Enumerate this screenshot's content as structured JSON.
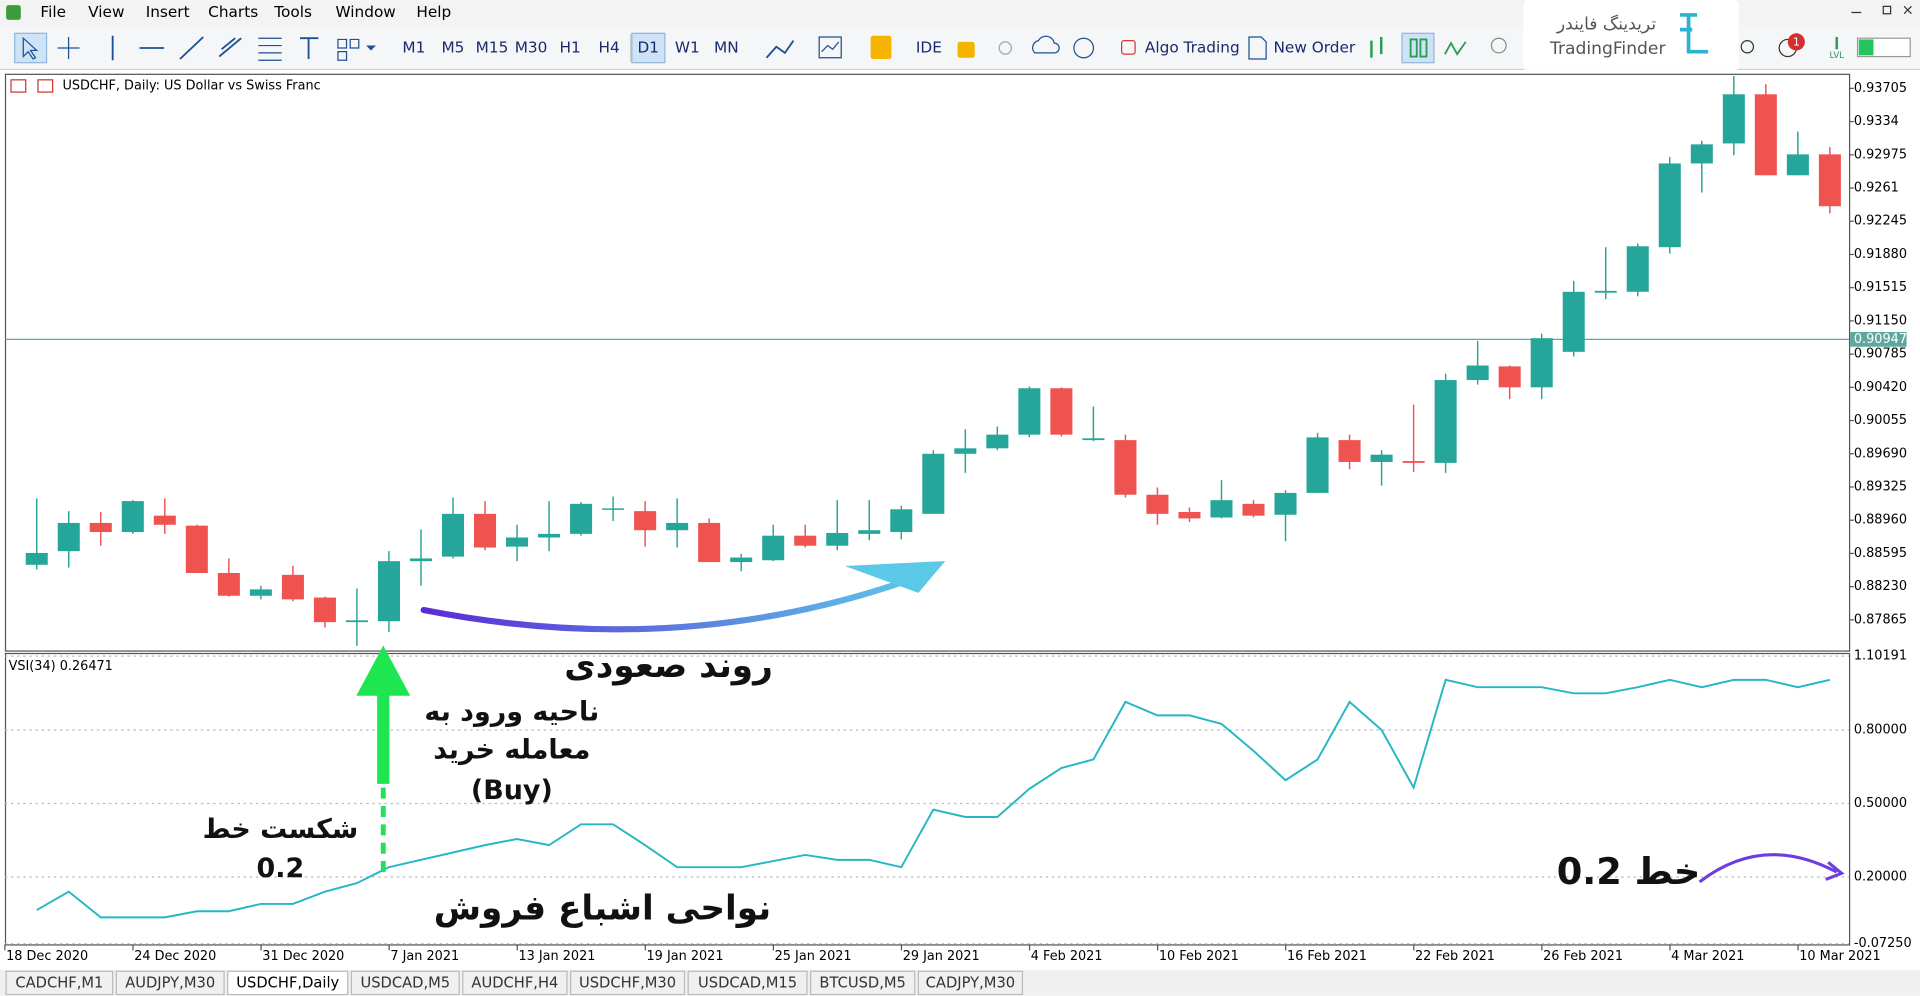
{
  "menu": [
    "File",
    "View",
    "Insert",
    "Charts",
    "Tools",
    "Window",
    "Help"
  ],
  "toolbar": {
    "timeframes": [
      "M1",
      "M5",
      "M15",
      "M30",
      "H1",
      "H4",
      "D1",
      "W1",
      "MN"
    ],
    "active": "D1",
    "ide": "IDE",
    "algo": "Algo Trading",
    "order": "New Order",
    "badge": "1",
    "level": "LVL"
  },
  "logo": {
    "fa": "تریدینگ فایندر",
    "en": "TradingFinder"
  },
  "chart_data": [
    {
      "type": "candlestick",
      "title": "USDCHF, Daily:  US Dollar vs Swiss Franc",
      "categories": [
        "18 Dec 2020",
        null,
        null,
        null,
        "24 Dec 2020",
        null,
        null,
        null,
        "31 Dec 2020",
        null,
        null,
        null,
        "7 Jan 2021",
        null,
        null,
        null,
        "13 Jan 2021",
        null,
        null,
        null,
        "19 Jan 2021",
        null,
        null,
        null,
        "25 Jan 2021",
        null,
        null,
        null,
        "29 Jan 2021",
        null,
        null,
        null,
        "4 Feb 2021",
        null,
        null,
        null,
        "10 Feb 2021",
        null,
        null,
        null,
        "16 Feb 2021",
        null,
        null,
        null,
        "22 Feb 2021",
        null,
        null,
        null,
        "26 Feb 2021",
        null,
        null,
        null,
        "4 Mar 2021",
        null,
        null,
        null,
        "10 Mar 2021"
      ],
      "open": [
        0.8847,
        0.8862,
        0.8893,
        0.8883,
        0.8901,
        0.889,
        0.8838,
        0.8813,
        0.8836,
        0.8811,
        0.8784,
        0.8785,
        0.8851,
        0.8856,
        0.8903,
        0.8867,
        0.8877,
        0.8881,
        0.8908,
        0.8906,
        0.8885,
        0.8893,
        0.885,
        0.8852,
        0.8879,
        0.8868,
        0.8881,
        0.8883,
        0.8903,
        0.8969,
        0.8975,
        0.899,
        0.9041,
        0.8984,
        0.8984,
        0.8924,
        0.8905,
        0.8899,
        0.8914,
        0.8902,
        0.8926,
        0.8984,
        0.896,
        0.8961,
        0.8959,
        0.905,
        0.9065,
        0.9042,
        0.9081,
        0.9146,
        0.9147,
        0.9196,
        0.9288,
        0.931,
        0.9364,
        0.9275,
        0.9298
      ],
      "high": [
        0.892,
        0.8906,
        0.8905,
        0.8918,
        0.892,
        0.8891,
        0.8854,
        0.8824,
        0.8846,
        0.8812,
        0.8821,
        0.8862,
        0.8886,
        0.8921,
        0.8917,
        0.8891,
        0.8917,
        0.8916,
        0.8922,
        0.8917,
        0.892,
        0.8898,
        0.8859,
        0.8891,
        0.8891,
        0.8918,
        0.8918,
        0.8912,
        0.8973,
        0.8996,
        0.8999,
        0.9043,
        0.9042,
        0.9021,
        0.899,
        0.8932,
        0.891,
        0.894,
        0.8918,
        0.8929,
        0.8992,
        0.899,
        0.8973,
        0.9023,
        0.9057,
        0.9093,
        0.9066,
        0.9101,
        0.9159,
        0.9196,
        0.92,
        0.9295,
        0.9313,
        0.9384,
        0.9375,
        0.9323,
        0.9306
      ],
      "low": [
        0.8842,
        0.8844,
        0.8868,
        0.8881,
        0.8881,
        0.8838,
        0.8812,
        0.8809,
        0.8807,
        0.8778,
        0.8758,
        0.8773,
        0.8824,
        0.8854,
        0.8863,
        0.8851,
        0.8862,
        0.8879,
        0.8895,
        0.8867,
        0.8866,
        0.885,
        0.884,
        0.8851,
        0.8866,
        0.8863,
        0.8874,
        0.8875,
        0.8903,
        0.8948,
        0.8973,
        0.8987,
        0.8988,
        0.8983,
        0.8921,
        0.8891,
        0.8894,
        0.8898,
        0.8899,
        0.8873,
        0.8926,
        0.8952,
        0.8934,
        0.8949,
        0.8948,
        0.9045,
        0.9029,
        0.9029,
        0.9076,
        0.9139,
        0.9142,
        0.9189,
        0.9256,
        0.9297,
        0.9275,
        0.9275,
        0.9233
      ],
      "close": [
        0.886,
        0.8893,
        0.8883,
        0.8917,
        0.8891,
        0.8838,
        0.8813,
        0.882,
        0.8809,
        0.8784,
        0.8786,
        0.8851,
        0.8854,
        0.8903,
        0.8866,
        0.8877,
        0.8881,
        0.8914,
        0.8909,
        0.8885,
        0.8893,
        0.885,
        0.8855,
        0.8879,
        0.8868,
        0.8882,
        0.8885,
        0.8908,
        0.8969,
        0.8975,
        0.899,
        0.9041,
        0.899,
        0.8986,
        0.8924,
        0.8903,
        0.8898,
        0.8918,
        0.8901,
        0.8926,
        0.8987,
        0.896,
        0.8968,
        0.8959,
        0.905,
        0.9066,
        0.9042,
        0.9096,
        0.9147,
        0.9148,
        0.9197,
        0.9288,
        0.9309,
        0.9364,
        0.9275,
        0.9298,
        0.9241
      ],
      "up_color": "#26a69a",
      "down_color": "#ef5350",
      "hline": 0.90947,
      "hline_color": "#5fa8a0",
      "ylim": [
        0.87529,
        0.93866
      ],
      "yticks": [
        0.93705,
        0.9334,
        0.92975,
        0.9261,
        0.92245,
        {
          "value": 0.9188,
          "label": "0.91880"
        },
        0.91515,
        {
          "value": 0.9115,
          "label": "0.91150"
        },
        0.90785,
        {
          "value": 0.9042,
          "label": "0.90420"
        },
        0.90055,
        {
          "value": 0.8969,
          "label": "0.89690"
        },
        0.89325,
        {
          "value": 0.8896,
          "label": "0.88960"
        },
        0.88595,
        {
          "value": 0.8823,
          "label": "0.88230"
        },
        0.87865
      ]
    },
    {
      "type": "line",
      "title": "VSI(34) 0.26471",
      "color": "#26b7c4",
      "values": [
        0.065,
        0.14,
        0.035,
        0.035,
        0.035,
        0.06,
        0.06,
        0.09,
        0.09,
        0.14,
        0.175,
        0.24,
        0.27,
        0.3,
        0.33,
        0.355,
        0.33,
        0.415,
        0.415,
        0.33,
        0.24,
        0.24,
        0.24,
        0.265,
        0.29,
        0.27,
        0.27,
        0.24,
        0.475,
        0.445,
        0.445,
        0.56,
        0.645,
        0.68,
        0.915,
        0.86,
        0.86,
        0.825,
        0.715,
        0.595,
        0.68,
        0.915,
        0.8,
        0.565,
        1.005,
        0.975,
        0.975,
        0.975,
        0.95,
        0.95,
        0.975,
        1.005,
        0.975,
        1.005,
        1.005,
        0.975,
        1.005
      ],
      "ylim": [
        -0.075,
        1.115
      ],
      "yticks": [
        {
          "value": 1.10191,
          "label": "1.10191"
        },
        {
          "value": 0.8,
          "label": "0.80000"
        },
        {
          "value": 0.5,
          "label": "0.50000"
        },
        {
          "value": 0.2,
          "label": "0.20000"
        },
        {
          "value": -0.0725,
          "label": "-0.07250"
        }
      ],
      "grid": true
    }
  ],
  "annotations": {
    "trend": "روند صعودی",
    "entry1": "ناحیه ورود به",
    "entry2": "معامله خرید",
    "entry3": "(Buy)",
    "break1": "شکست خط",
    "break2": "0.2",
    "oversold": "نواحی اشباع فروش",
    "line": "خط 0.2"
  },
  "tabs": [
    "CADCHF,M1",
    "AUDJPY,M30",
    "USDCHF,Daily",
    "USDCAD,M5",
    "AUDCHF,H4",
    "USDCHF,M30",
    "USDCAD,M15",
    "BTCUSD,M5",
    "CADJPY,M30"
  ],
  "active_tab": "USDCHF,Daily"
}
